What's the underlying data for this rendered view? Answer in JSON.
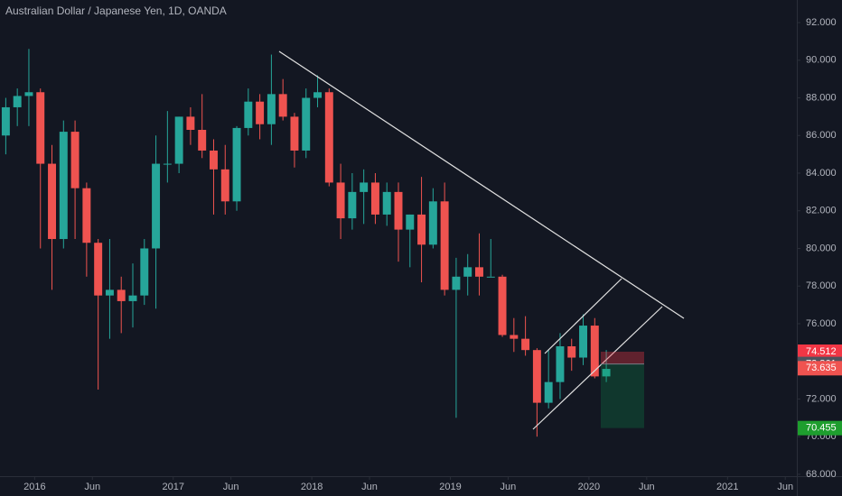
{
  "chart_data": {
    "type": "candlestick",
    "title": "Australian Dollar / Japanese Yen, 1D, OANDA",
    "x": [
      "2015-10",
      "2015-11",
      "2015-12",
      "2016-01",
      "2016-02",
      "2016-03",
      "2016-04",
      "2016-05",
      "2016-06",
      "2016-07",
      "2016-08",
      "2016-09",
      "2016-10",
      "2016-11",
      "2016-12",
      "2017-01",
      "2017-02",
      "2017-03",
      "2017-04",
      "2017-05",
      "2017-06",
      "2017-07",
      "2017-08",
      "2017-09",
      "2017-10",
      "2017-11",
      "2017-12",
      "2018-01",
      "2018-02",
      "2018-03",
      "2018-04",
      "2018-05",
      "2018-06",
      "2018-07",
      "2018-08",
      "2018-09",
      "2018-10",
      "2018-11",
      "2018-12",
      "2019-01",
      "2019-02",
      "2019-03",
      "2019-04",
      "2019-05",
      "2019-06",
      "2019-07",
      "2019-08",
      "2019-09",
      "2019-10",
      "2019-11",
      "2019-12",
      "2020-01",
      "2020-02"
    ],
    "open": [
      86,
      87.5,
      88.1,
      88.3,
      84.5,
      80.5,
      86.2,
      83.2,
      80.3,
      77.5,
      77.8,
      77.2,
      77.5,
      80,
      84.5,
      84.5,
      87,
      86.3,
      85.2,
      84.2,
      82.5,
      86.4,
      87.8,
      86.6,
      88.2,
      87,
      85.2,
      88,
      88.3,
      83.5,
      81.6,
      83,
      83.5,
      81.8,
      83,
      81,
      81.8,
      80.2,
      82.5,
      77.8,
      78.5,
      79,
      78.5,
      78.5,
      75.4,
      75.2,
      74.6,
      71.8,
      72.9,
      74.8,
      74.2,
      75.9,
      73.2
    ],
    "high": [
      88,
      88.5,
      90.6,
      88.5,
      85.5,
      86.8,
      86.8,
      83.5,
      80.5,
      80.5,
      78.5,
      79.2,
      80.5,
      86,
      87.3,
      87,
      87.5,
      88.2,
      85.8,
      85.5,
      86.5,
      88.5,
      88.2,
      90.3,
      89,
      87.2,
      88.5,
      89.2,
      88.5,
      84.5,
      84,
      84.2,
      84,
      83.5,
      83.5,
      81.8,
      83.8,
      83.2,
      83.5,
      79.5,
      79.7,
      80.8,
      80.5,
      78.6,
      76.3,
      76.4,
      74.7,
      74.6,
      75.5,
      75.2,
      76.5,
      76.3,
      74.6
    ],
    "low": [
      85,
      86.5,
      86.5,
      80,
      77.8,
      80,
      80.5,
      78.5,
      72.5,
      75.2,
      75.5,
      75.8,
      77,
      76.8,
      83.5,
      84,
      85.5,
      84.8,
      81.8,
      81.8,
      82,
      86,
      85.8,
      85.5,
      86.8,
      84.3,
      84.8,
      87.5,
      83.3,
      80.5,
      81,
      81.3,
      81.3,
      81.2,
      79.3,
      79,
      78.2,
      80,
      77.5,
      71,
      77.5,
      77.5,
      78.5,
      75.3,
      74.5,
      74.3,
      70,
      71.5,
      72,
      73.5,
      73.8,
      73.1,
      72.9
    ],
    "close": [
      87.5,
      88.1,
      88.3,
      84.5,
      80.5,
      86.2,
      83.2,
      80.3,
      77.5,
      77.8,
      77.2,
      77.5,
      80,
      84.5,
      84.5,
      87,
      86.3,
      85.2,
      84.2,
      82.5,
      86.4,
      87.8,
      86.6,
      88.2,
      87,
      85.2,
      88,
      88.3,
      83.5,
      81.6,
      83,
      83.5,
      81.8,
      83,
      81,
      81.8,
      80.2,
      82.5,
      77.8,
      78.5,
      79,
      78.5,
      78.5,
      75.4,
      75.2,
      74.6,
      71.8,
      72.9,
      74.8,
      74.2,
      75.9,
      73.2,
      73.6
    ],
    "up_color": "#26a69a",
    "down_color": "#ef5350",
    "xlim": [
      "2015-10",
      "2021-07"
    ],
    "xticks": [
      {
        "value": "2016-01",
        "label": "2016"
      },
      {
        "value": "2016-06",
        "label": "Jun"
      },
      {
        "value": "2017-01",
        "label": "2017"
      },
      {
        "value": "2017-06",
        "label": "Jun"
      },
      {
        "value": "2018-01",
        "label": "2018"
      },
      {
        "value": "2018-06",
        "label": "Jun"
      },
      {
        "value": "2019-01",
        "label": "2019"
      },
      {
        "value": "2019-06",
        "label": "Jun"
      },
      {
        "value": "2020-01",
        "label": "2020"
      },
      {
        "value": "2020-06",
        "label": "Jun"
      },
      {
        "value": "2021-01",
        "label": "2021"
      },
      {
        "value": "2021-06",
        "label": "Jun"
      }
    ],
    "ylim": [
      67.9,
      93.2
    ],
    "yticks": [
      {
        "value": 68,
        "label": "68.000"
      },
      {
        "value": 70,
        "label": "70.000"
      },
      {
        "value": 72,
        "label": "72.000"
      },
      {
        "value": 74,
        "label": "74.000"
      },
      {
        "value": 76,
        "label": "76.000"
      },
      {
        "value": 78,
        "label": "78.000"
      },
      {
        "value": 80,
        "label": "80.000"
      },
      {
        "value": 82,
        "label": "82.000"
      },
      {
        "value": 84,
        "label": "84.000"
      },
      {
        "value": 86,
        "label": "86.000"
      },
      {
        "value": 88,
        "label": "88.000"
      },
      {
        "value": 90,
        "label": "90.000"
      },
      {
        "value": 92,
        "label": "92.000"
      }
    ],
    "price_tags": [
      {
        "value": 74.512,
        "color": "#f23645"
      },
      {
        "value": 73.861,
        "color": "#50535e"
      },
      {
        "value": 73.635,
        "color": "#ef5350"
      },
      {
        "value": 70.455,
        "color": "#1e9e2e"
      }
    ]
  }
}
